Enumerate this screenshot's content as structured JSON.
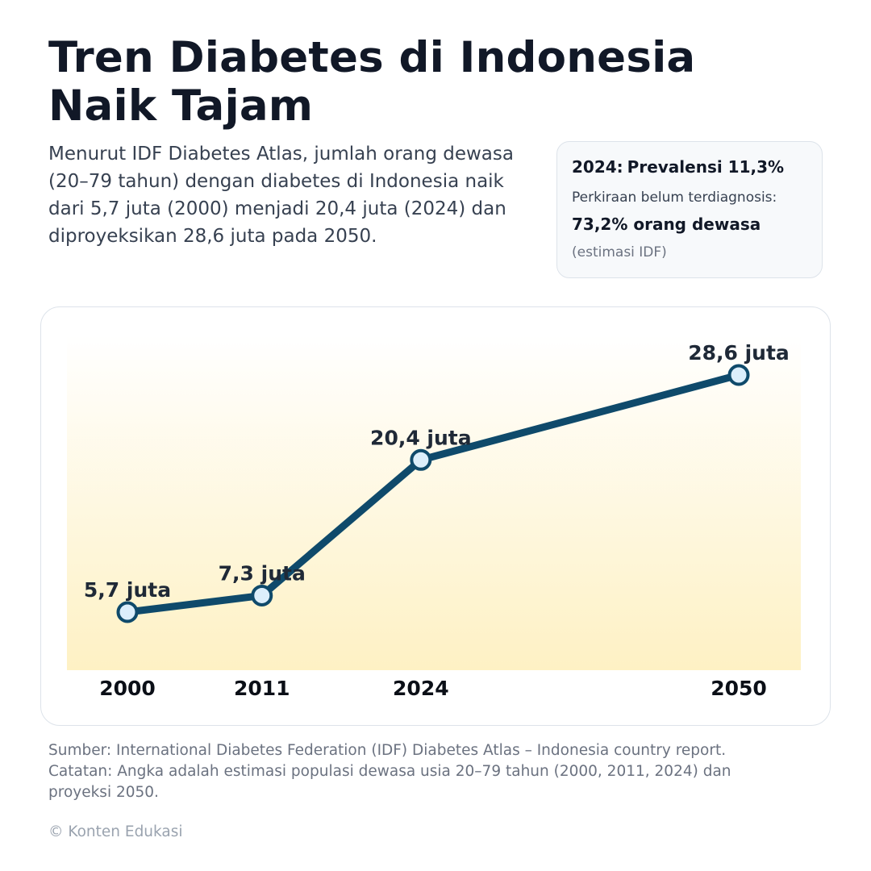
{
  "title": {
    "line1": "Tren Diabetes di Indonesia",
    "line2": "Naik Tajam"
  },
  "lead": "Menurut IDF Diabetes Atlas, jumlah orang dewasa (20–79 tahun) dengan diabetes di Indonesia naik dari 5,7 juta (2000) menjadi 20,4 juta (2024) dan diproyeksikan 28,6 juta pada 2050.",
  "stat_box": {
    "year": "2024:",
    "headline": "Prevalensi 11,3%",
    "sub": "Perkiraan belum terdiagnosis:",
    "value": "73,2% orang dewasa",
    "note": "(estimasi IDF)"
  },
  "chart_data": {
    "type": "line",
    "title": "",
    "xlabel": "",
    "ylabel": "",
    "x_scale": "linear (years)",
    "grid": false,
    "legend": "none",
    "x": [
      2000,
      2011,
      2024,
      2050
    ],
    "tick_labels": [
      "2000",
      "2011",
      "2024",
      "2050"
    ],
    "values": [
      5.7,
      7.3,
      20.4,
      28.6
    ],
    "unit": "juta",
    "data_labels": [
      "5,7 juta",
      "7,3 juta",
      "20,4 juta",
      "28,6 juta"
    ],
    "line_color": "#0f4a6b",
    "marker_fill": "#dceefb",
    "background_gradient": [
      "#fef1c4",
      "#ffffff"
    ]
  },
  "footnote": {
    "line1": "Sumber: International Diabetes Federation (IDF) Diabetes Atlas – Indonesia country report.",
    "line2": "Catatan: Angka adalah estimasi populasi dewasa usia 20–79 tahun (2000, 2011, 2024) dan",
    "line3": "proyeksi 2050."
  },
  "copyright": "© Konten Edukasi"
}
